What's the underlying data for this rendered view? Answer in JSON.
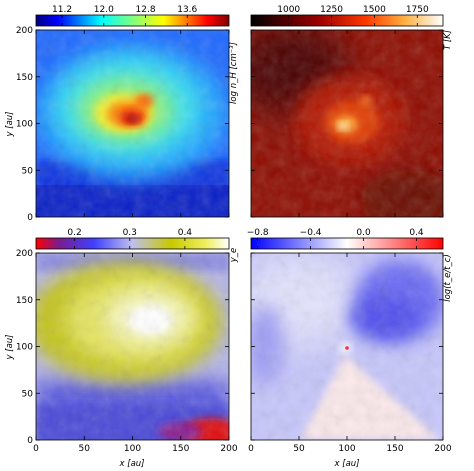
{
  "chart_data": [
    {
      "type": "heatmap",
      "panel": "density",
      "colormap": "jet",
      "colorbar_label": "log n_H [cm^-3]",
      "colorbar_range": [
        10.7,
        14.4
      ],
      "colorbar_ticks": [
        "11.2",
        "12.0",
        "12.8",
        "13.6"
      ],
      "colorbar_tick_values": [
        11.2,
        12.0,
        12.8,
        13.6
      ],
      "xlabel": "",
      "ylabel": "y [au]",
      "xlim": [
        0,
        200
      ],
      "ylim": [
        0,
        200
      ],
      "xticks": [],
      "yticks": [
        "0",
        "50",
        "100",
        "150",
        "200"
      ],
      "ytick_values": [
        0,
        50,
        100,
        150,
        200
      ],
      "description": "log density field; high-density (red) clump near x≈95, y≈100 embedded in a green/yellow cloud, blue background"
    },
    {
      "type": "heatmap",
      "panel": "temperature",
      "colormap": "gist_heat",
      "colorbar_label": "T [K]",
      "colorbar_range": [
        780,
        1900
      ],
      "colorbar_ticks": [
        "1000",
        "1250",
        "1500",
        "1750"
      ],
      "colorbar_tick_values": [
        1000,
        1250,
        1500,
        1750
      ],
      "xlabel": "",
      "ylabel": "",
      "xlim": [
        0,
        200
      ],
      "ylim": [
        0,
        200
      ],
      "xticks": [],
      "yticks": [],
      "description": "temperature field, mostly dark red with a bright hot spot near x≈100, y≈100"
    },
    {
      "type": "heatmap",
      "panel": "electron fraction",
      "colormap": "gist_stern-like (blue-yellow-white)",
      "colorbar_label": "y_e",
      "colorbar_range": [
        0.13,
        0.48
      ],
      "colorbar_ticks": [
        "0.2",
        "0.3",
        "0.4"
      ],
      "colorbar_tick_values": [
        0.2,
        0.3,
        0.4
      ],
      "xlabel": "x [au]",
      "ylabel": "y [au]",
      "xlim": [
        0,
        200
      ],
      "ylim": [
        0,
        200
      ],
      "xticks": [
        "0",
        "50",
        "100",
        "150",
        "200"
      ],
      "xtick_values": [
        0,
        50,
        100,
        150,
        200
      ],
      "yticks": [
        "0",
        "50",
        "100",
        "150",
        "200"
      ],
      "ytick_values": [
        0,
        50,
        100,
        150,
        200
      ],
      "description": "yellow/white high y_e region in the upper middle, blue-purple lower band, red patch at bottom right"
    },
    {
      "type": "heatmap",
      "panel": "timescale ratio",
      "colormap": "bwr",
      "colorbar_label": "log(t_e/t_c)",
      "colorbar_range": [
        -0.85,
        0.6
      ],
      "colorbar_ticks": [
        "−0.8",
        "−0.4",
        "0.0",
        "0.4"
      ],
      "colorbar_tick_values": [
        -0.8,
        -0.4,
        0.0,
        0.4
      ],
      "xlabel": "x [au]",
      "ylabel": "",
      "xlim": [
        0,
        200
      ],
      "ylim": [
        0,
        200
      ],
      "xticks": [
        "0",
        "50",
        "100",
        "150",
        "200"
      ],
      "xtick_values": [
        0,
        50,
        100,
        150,
        200
      ],
      "yticks": [],
      "description": "mostly blue/white field, darker blue arm from center to upper right, light pink wedge below center"
    }
  ],
  "labels": {
    "y_axis": "y [au]",
    "x_axis": "x [au]",
    "cb_density": "log n_H [cm⁻³]",
    "cb_temperature": "T [K]",
    "cb_ye": "y_e",
    "cb_ratio": "log(t_e/t_c)"
  },
  "colors": {
    "background": "#ffffff",
    "jet_low": "#00007f",
    "jet_high": "#7f0000",
    "heat_dark": "#200000",
    "heat_bright": "#ffffff",
    "bwr_blue": "#0000ff",
    "bwr_red": "#ff0000"
  }
}
